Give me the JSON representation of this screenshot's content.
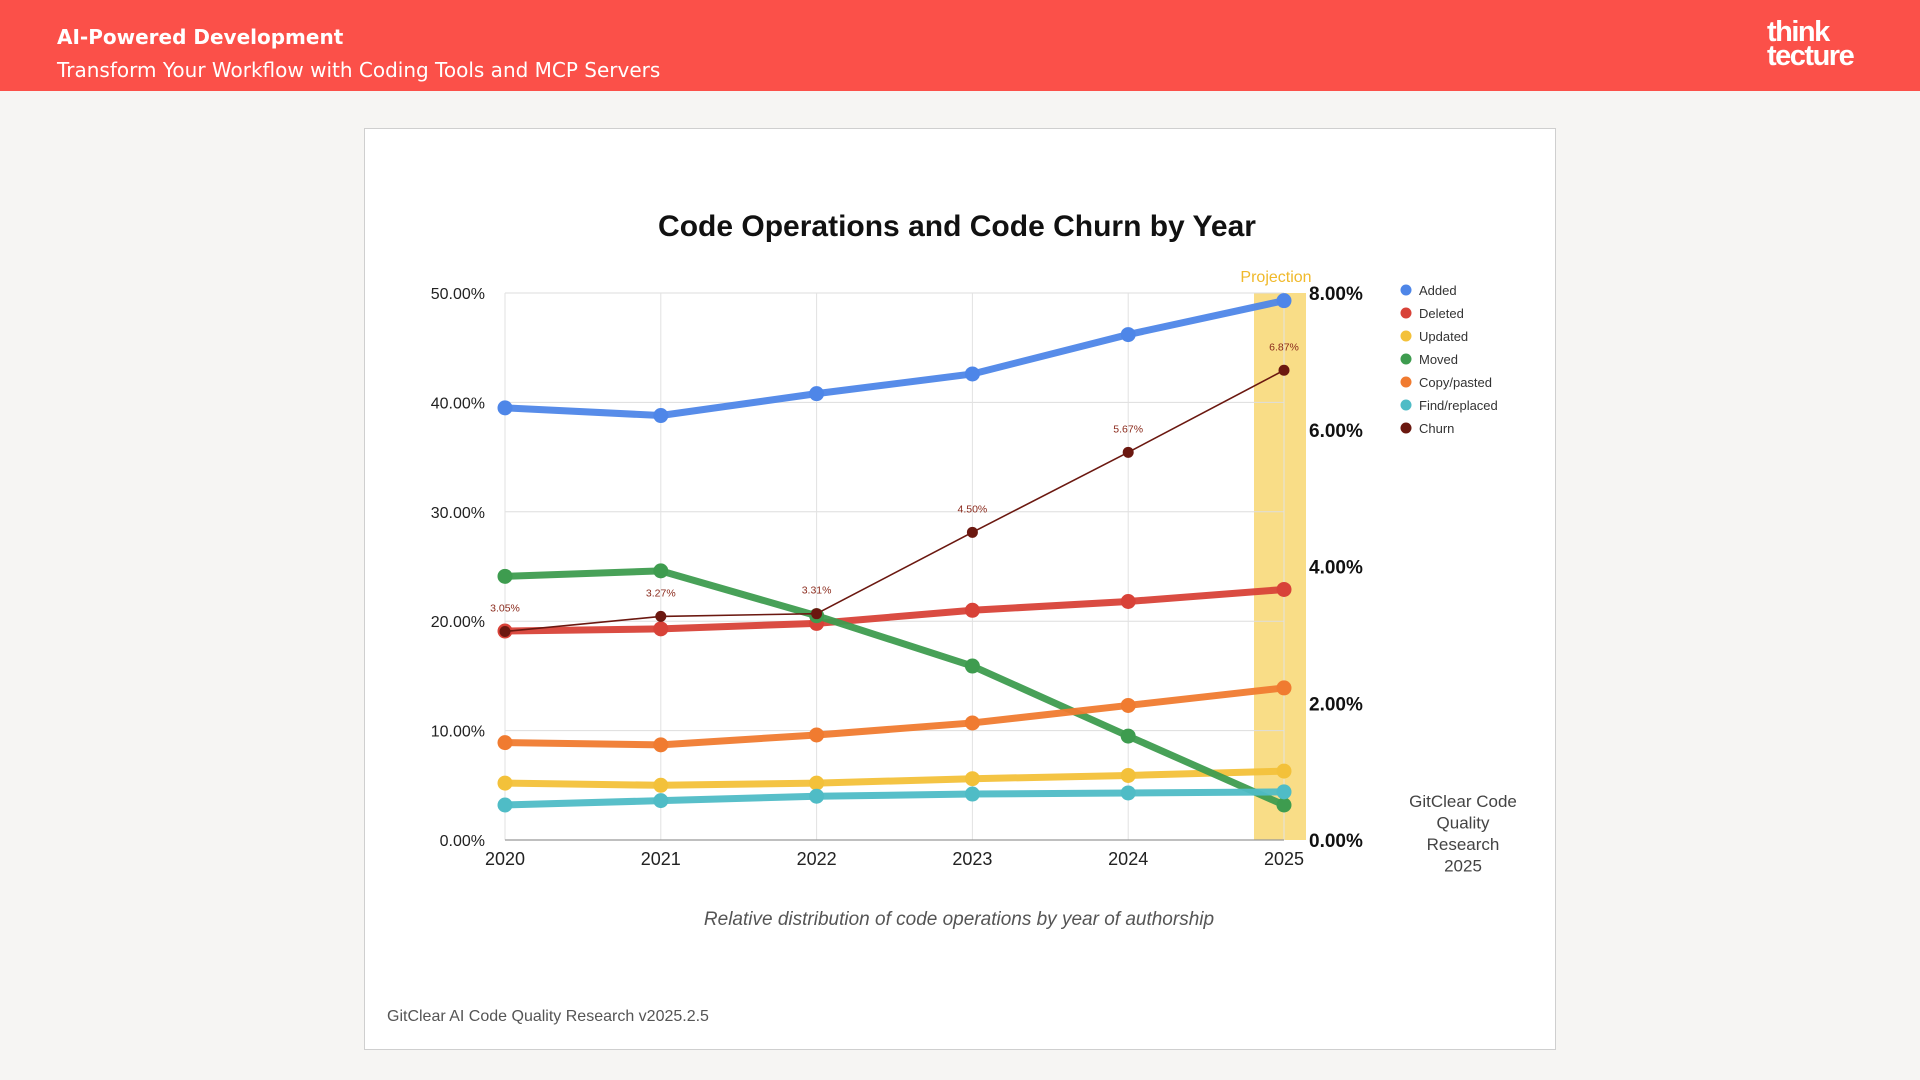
{
  "header": {
    "title": "AI-Powered Development",
    "subtitle": "Transform Your Workflow with Coding Tools and MCP Servers",
    "logo_lines": [
      "think",
      "tecture"
    ]
  },
  "chart_data": {
    "type": "line",
    "title": "Code Operations and Code Churn by Year",
    "caption": "Relative distribution of code operations by year of authorship",
    "source": "GitClear AI Code Quality Research v2025.2.5",
    "side_note": [
      "GitClear Code",
      "Quality",
      "Research",
      "2025"
    ],
    "projection_label": "Projection",
    "projection_color": "#f8d97a",
    "x": [
      "2020",
      "2021",
      "2022",
      "2023",
      "2024",
      "2025"
    ],
    "y_left": {
      "ylim": [
        0,
        50
      ],
      "ticks": [
        "0.00%",
        "10.00%",
        "20.00%",
        "30.00%",
        "40.00%",
        "50.00%"
      ]
    },
    "y_right": {
      "ylim": [
        0,
        8
      ],
      "ticks": [
        "0.00%",
        "2.00%",
        "4.00%",
        "6.00%",
        "8.00%"
      ]
    },
    "legend_position": "right",
    "series": [
      {
        "name": "Added",
        "axis": "left",
        "color": "#4e86e8",
        "values": [
          39.5,
          38.8,
          40.8,
          42.6,
          46.2,
          49.3
        ]
      },
      {
        "name": "Deleted",
        "axis": "left",
        "color": "#d84238",
        "values": [
          19.1,
          19.3,
          19.8,
          21.0,
          21.8,
          22.9
        ]
      },
      {
        "name": "Updated",
        "axis": "left",
        "color": "#f3c13a",
        "values": [
          5.2,
          5.0,
          5.2,
          5.6,
          5.9,
          6.3
        ]
      },
      {
        "name": "Moved",
        "axis": "left",
        "color": "#3e9c4f",
        "values": [
          24.1,
          24.6,
          20.5,
          15.9,
          9.5,
          3.2
        ]
      },
      {
        "name": "Copy/pasted",
        "axis": "left",
        "color": "#f07b30",
        "values": [
          8.9,
          8.7,
          9.6,
          10.7,
          12.3,
          13.9
        ]
      },
      {
        "name": "Find/replaced",
        "axis": "left",
        "color": "#4fbcc6",
        "values": [
          3.2,
          3.6,
          4.0,
          4.2,
          4.3,
          4.4
        ]
      },
      {
        "name": "Churn",
        "axis": "right",
        "color": "#6b1810",
        "values": [
          3.05,
          3.27,
          3.31,
          4.5,
          5.67,
          6.87
        ],
        "labels": [
          "3.05%",
          "3.27%",
          "3.31%",
          "4.50%",
          "5.67%",
          "6.87%"
        ]
      }
    ]
  }
}
